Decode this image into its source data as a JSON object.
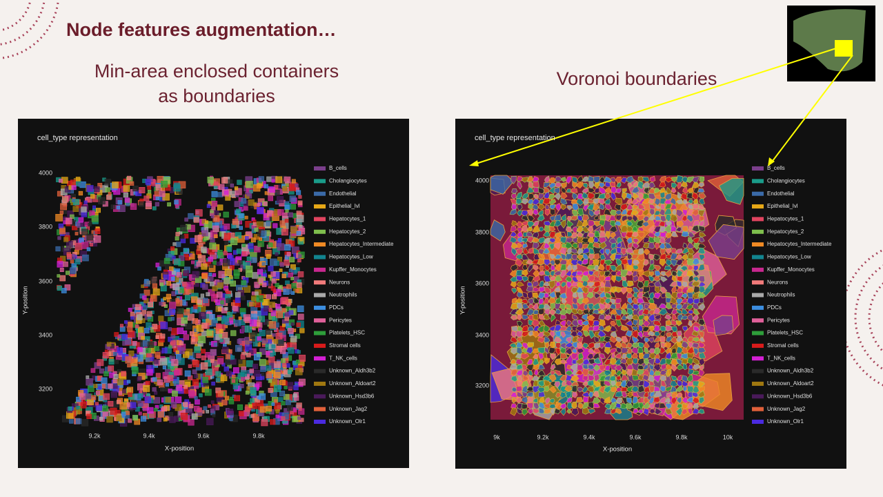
{
  "title": "Node features augmentation…",
  "left_panel": {
    "heading": [
      "Min-area enclosed containers",
      "as boundaries"
    ],
    "chart": {
      "title": "cell_type representation",
      "x_label": "X-position",
      "y_label": "Y-position",
      "xticks": [
        "9.2k",
        "9.4k",
        "9.6k",
        "9.8k"
      ],
      "yticks": [
        "4000",
        "3800",
        "3600",
        "3400",
        "3200"
      ],
      "legend": [
        {
          "name": "B_cells",
          "color": "#7b3f8c"
        },
        {
          "name": "Cholangiocytes",
          "color": "#1a9c8a"
        },
        {
          "name": "Endothelial",
          "color": "#3a6aa8"
        },
        {
          "name": "Epithelial_lvl",
          "color": "#e6a817"
        },
        {
          "name": "Hepatocytes_1",
          "color": "#e0445f"
        },
        {
          "name": "Hepatocytes_2",
          "color": "#7fbf4d"
        },
        {
          "name": "Hepatocytes_Intermediate",
          "color": "#f08a24"
        },
        {
          "name": "Hepatocytes_Low",
          "color": "#12858f"
        },
        {
          "name": "Kupffer_Monocytes",
          "color": "#c8288f"
        },
        {
          "name": "Neurons",
          "color": "#f07a7a"
        },
        {
          "name": "Neutrophils",
          "color": "#a9a9a9"
        },
        {
          "name": "PDCs",
          "color": "#3c8ee0"
        },
        {
          "name": "Pericytes",
          "color": "#e0609a"
        },
        {
          "name": "Platelets_HSC",
          "color": "#2e9e3a"
        },
        {
          "name": "Stromal cells",
          "color": "#d81b1b"
        },
        {
          "name": "T_NK_cells",
          "color": "#d420d4"
        },
        {
          "name": "Unknown_Aldh3b2",
          "color": "#2a2a2a"
        },
        {
          "name": "Unknown_Aldoart2",
          "color": "#a07810"
        },
        {
          "name": "Unknown_Hsd3b6",
          "color": "#4a1a5a"
        },
        {
          "name": "Unknown_Jag2",
          "color": "#e0603a"
        },
        {
          "name": "Unknown_Olr1",
          "color": "#4a2ae0"
        }
      ]
    }
  },
  "right_panel": {
    "heading": "Voronoi boundaries",
    "chart": {
      "title": "cell_type representation",
      "x_label": "X-position",
      "y_label": "Y-position",
      "xticks": [
        "9k",
        "9.2k",
        "9.4k",
        "9.6k",
        "9.8k",
        "10k"
      ],
      "yticks": [
        "4000",
        "3800",
        "3600",
        "3400",
        "3200"
      ],
      "legend": [
        {
          "name": "B_cells",
          "color": "#7b3f8c"
        },
        {
          "name": "Cholangiocytes",
          "color": "#1a9c8a"
        },
        {
          "name": "Endothelial",
          "color": "#3a6aa8"
        },
        {
          "name": "Epithelial_lvl",
          "color": "#e6a817"
        },
        {
          "name": "Hepatocytes_1",
          "color": "#e0445f"
        },
        {
          "name": "Hepatocytes_2",
          "color": "#7fbf4d"
        },
        {
          "name": "Hepatocytes_Intermediate",
          "color": "#f08a24"
        },
        {
          "name": "Hepatocytes_Low",
          "color": "#12858f"
        },
        {
          "name": "Kupffer_Monocytes",
          "color": "#c8288f"
        },
        {
          "name": "Neurons",
          "color": "#f07a7a"
        },
        {
          "name": "Neutrophils",
          "color": "#a9a9a9"
        },
        {
          "name": "PDCs",
          "color": "#3c8ee0"
        },
        {
          "name": "Pericytes",
          "color": "#e0609a"
        },
        {
          "name": "Platelets_HSC",
          "color": "#2e9e3a"
        },
        {
          "name": "Stromal cells",
          "color": "#d81b1b"
        },
        {
          "name": "T_NK_cells",
          "color": "#d420d4"
        },
        {
          "name": "Unknown_Aldh3b2",
          "color": "#2a2a2a"
        },
        {
          "name": "Unknown_Aldoart2",
          "color": "#a07810"
        },
        {
          "name": "Unknown_Hsd3b6",
          "color": "#4a1a5a"
        },
        {
          "name": "Unknown_Jag2",
          "color": "#e0603a"
        },
        {
          "name": "Unknown_Olr1",
          "color": "#4a2ae0"
        }
      ]
    }
  }
}
